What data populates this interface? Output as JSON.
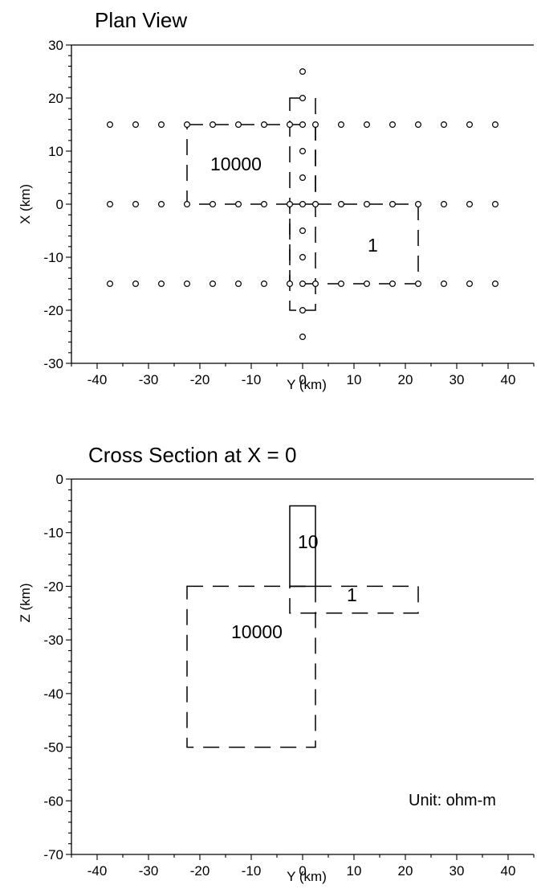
{
  "plan": {
    "title": "Plan View",
    "xlabel": "Y (km)",
    "ylabel": "X (km)",
    "xlim": [
      -45,
      45
    ],
    "ylim": [
      -30,
      30
    ],
    "xticks": [
      "-40",
      "-30",
      "-20",
      "-10",
      "0",
      "10",
      "20",
      "30",
      "40"
    ],
    "xtick_values": [
      -40,
      -30,
      -20,
      -10,
      0,
      10,
      20,
      30,
      40
    ],
    "yticks": [
      "30",
      "20",
      "10",
      "0",
      "-10",
      "-20",
      "-30"
    ],
    "ytick_values": [
      30,
      20,
      10,
      0,
      -10,
      -20,
      -30
    ],
    "stations": {
      "row_y": [
        -37.5,
        -32.5,
        -27.5,
        -22.5,
        -17.5,
        -12.5,
        -7.5,
        -2.5,
        0,
        2.5,
        7.5,
        12.5,
        17.5,
        22.5,
        27.5,
        32.5,
        37.5
      ],
      "row_x": [
        15,
        0,
        -15
      ],
      "column_y": 0,
      "column_x": [
        25,
        20,
        10,
        5,
        -5,
        -10,
        -20,
        -25
      ]
    },
    "blocks": [
      {
        "label": "10000",
        "y": [
          -22.5,
          2.5
        ],
        "x": [
          0,
          15
        ],
        "dashed": true
      },
      {
        "label": "1",
        "y": [
          -2.5,
          22.5
        ],
        "x": [
          -15,
          0
        ],
        "dashed": true
      },
      {
        "label": "",
        "y": [
          -2.5,
          2.5
        ],
        "x": [
          -20,
          20
        ],
        "dashed": true
      }
    ],
    "block_labels": {
      "a": "10000",
      "b": "1"
    }
  },
  "section": {
    "title": "Cross Section at X = 0",
    "xlabel": "Y (km)",
    "ylabel": "Z (km)",
    "xlim": [
      -45,
      45
    ],
    "ylim": [
      -70,
      0
    ],
    "xticks": [
      "-40",
      "-30",
      "-20",
      "-10",
      "0",
      "10",
      "20",
      "30",
      "40"
    ],
    "xtick_values": [
      -40,
      -30,
      -20,
      -10,
      0,
      10,
      20,
      30,
      40
    ],
    "yticks": [
      "0",
      "-10",
      "-20",
      "-30",
      "-40",
      "-50",
      "-60",
      "-70"
    ],
    "ytick_values": [
      0,
      -10,
      -20,
      -30,
      -40,
      -50,
      -60,
      -70
    ],
    "blocks": [
      {
        "label": "10",
        "y": [
          -2.5,
          2.5
        ],
        "z": [
          -20,
          -5
        ],
        "dashed": false
      },
      {
        "label": "1",
        "y": [
          -2.5,
          22.5
        ],
        "z": [
          -25,
          -20
        ],
        "dashed": true
      },
      {
        "label": "10000",
        "y": [
          -22.5,
          2.5
        ],
        "z": [
          -50,
          -20
        ],
        "dashed": true
      }
    ],
    "block_labels": {
      "a": "10",
      "b": "1",
      "c": "10000"
    },
    "unit_note": "Unit: ohm-m"
  }
}
